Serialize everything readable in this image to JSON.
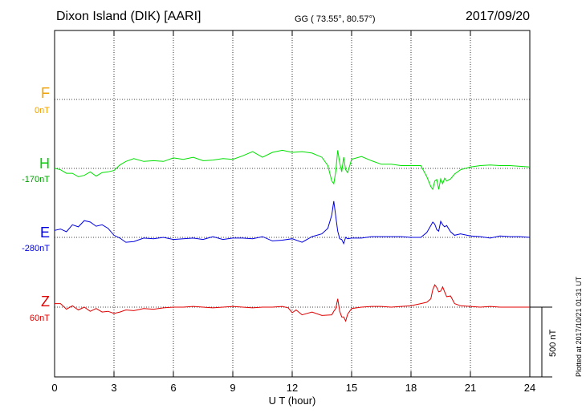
{
  "header": {
    "station": "Dixon Island (DIK)  [AARI]",
    "coords": "GG ( 73.55°,  80.57°)",
    "date": "2017/09/20"
  },
  "footer_note": "Plotted at 2017/10/21 01:31  UT",
  "chart_data": {
    "type": "line",
    "xlabel": "U T (hour)",
    "xlim": [
      0,
      24
    ],
    "xticks": [
      0,
      3,
      6,
      9,
      12,
      15,
      18,
      21,
      24
    ],
    "grid": true,
    "scale_bar_label": "500 nT",
    "series": [
      {
        "name": "F",
        "baseline": "0nT",
        "color": "#f0a000",
        "values": []
      },
      {
        "name": "H",
        "baseline": "-170nT",
        "color": "#00e000",
        "x": [
          0,
          0.3,
          0.6,
          0.9,
          1.2,
          1.5,
          1.8,
          2.1,
          2.4,
          2.7,
          3.0,
          3.3,
          3.6,
          4.0,
          4.5,
          5.0,
          5.5,
          6.0,
          6.5,
          7.0,
          7.5,
          8.0,
          8.5,
          9.0,
          9.5,
          10.0,
          10.5,
          11.0,
          11.5,
          12.0,
          12.5,
          13.0,
          13.5,
          13.8,
          14.0,
          14.1,
          14.2,
          14.3,
          14.4,
          14.5,
          14.6,
          14.7,
          14.8,
          15.0,
          15.5,
          16.0,
          16.5,
          17.0,
          17.5,
          18.0,
          18.5,
          18.8,
          19.0,
          19.1,
          19.2,
          19.3,
          19.4,
          19.5,
          19.6,
          19.7,
          19.8,
          20.0,
          20.2,
          20.5,
          21.0,
          21.5,
          22.0,
          22.5,
          23.0,
          23.5,
          24.0
        ],
        "values": [
          1,
          -10,
          -35,
          -35,
          -60,
          -50,
          -25,
          -55,
          -30,
          -25,
          -15,
          25,
          50,
          70,
          50,
          55,
          50,
          75,
          65,
          80,
          55,
          60,
          70,
          65,
          90,
          120,
          80,
          115,
          130,
          115,
          120,
          110,
          80,
          20,
          -90,
          -110,
          -20,
          130,
          40,
          -25,
          80,
          -10,
          -30,
          65,
          85,
          55,
          30,
          30,
          20,
          20,
          20,
          -60,
          -130,
          -150,
          -90,
          -80,
          -150,
          -75,
          -110,
          -70,
          -90,
          -75,
          -40,
          -10,
          10,
          20,
          25,
          20,
          20,
          15,
          10
        ]
      },
      {
        "name": "E",
        "baseline": "-280nT",
        "color": "#0000e0",
        "x": [
          0,
          0.3,
          0.6,
          0.9,
          1.2,
          1.5,
          1.8,
          2.1,
          2.4,
          2.7,
          3.0,
          3.3,
          3.6,
          4.0,
          4.5,
          5.0,
          5.5,
          6.0,
          6.5,
          7.0,
          7.5,
          8.0,
          8.5,
          9.0,
          9.5,
          10.0,
          10.5,
          11.0,
          11.5,
          12.0,
          12.5,
          13.0,
          13.5,
          13.8,
          14.0,
          14.1,
          14.2,
          14.3,
          14.4,
          14.5,
          14.6,
          14.7,
          14.8,
          15.0,
          15.5,
          16.0,
          16.5,
          17.0,
          17.5,
          18.0,
          18.5,
          18.8,
          19.0,
          19.1,
          19.2,
          19.3,
          19.4,
          19.5,
          19.6,
          19.7,
          19.8,
          20.0,
          20.2,
          20.5,
          21.0,
          21.5,
          22.0,
          22.5,
          23.0,
          23.5,
          24.0
        ],
        "values": [
          50,
          60,
          40,
          90,
          75,
          120,
          110,
          80,
          90,
          65,
          15,
          -5,
          -35,
          -30,
          -5,
          -10,
          0,
          -15,
          -10,
          -5,
          -15,
          5,
          -15,
          -5,
          -5,
          -10,
          5,
          -25,
          -20,
          -10,
          -35,
          5,
          25,
          65,
          160,
          260,
          150,
          45,
          -10,
          -15,
          -45,
          0,
          -10,
          -5,
          -5,
          5,
          5,
          5,
          5,
          0,
          0,
          35,
          85,
          110,
          95,
          55,
          45,
          115,
          90,
          75,
          85,
          40,
          15,
          25,
          10,
          5,
          -5,
          10,
          5,
          5,
          0
        ]
      },
      {
        "name": "Z",
        "baseline": "60nT",
        "color": "#e00000",
        "x": [
          0,
          0.3,
          0.6,
          0.9,
          1.2,
          1.5,
          1.8,
          2.1,
          2.4,
          2.7,
          3.0,
          3.3,
          3.6,
          4.0,
          4.5,
          5.0,
          5.5,
          6.0,
          6.5,
          7.0,
          7.5,
          8.0,
          8.5,
          9.0,
          9.5,
          10.0,
          10.5,
          11.0,
          11.5,
          11.8,
          12.0,
          12.2,
          12.5,
          13.0,
          13.5,
          14.0,
          14.1,
          14.2,
          14.3,
          14.4,
          14.5,
          14.6,
          14.7,
          14.8,
          15.0,
          15.5,
          16.0,
          16.5,
          17.0,
          17.5,
          18.0,
          18.5,
          18.8,
          19.0,
          19.1,
          19.2,
          19.3,
          19.4,
          19.5,
          19.6,
          19.7,
          19.8,
          20.0,
          20.2,
          20.5,
          21.0,
          21.5,
          22.0,
          22.5,
          23.0,
          23.5,
          24.0
        ],
        "values": [
          25,
          25,
          -15,
          10,
          -20,
          0,
          -30,
          -10,
          -35,
          -30,
          -45,
          -35,
          -20,
          -25,
          -10,
          -15,
          -5,
          0,
          0,
          5,
          0,
          -5,
          0,
          5,
          0,
          -5,
          0,
          0,
          5,
          -5,
          -40,
          -20,
          -55,
          -35,
          -60,
          -55,
          -30,
          -10,
          60,
          -30,
          -70,
          -70,
          -100,
          -50,
          -10,
          0,
          5,
          5,
          0,
          5,
          10,
          25,
          35,
          60,
          125,
          160,
          140,
          110,
          115,
          145,
          110,
          75,
          80,
          25,
          10,
          5,
          0,
          5,
          0,
          0,
          0,
          0
        ]
      }
    ]
  }
}
